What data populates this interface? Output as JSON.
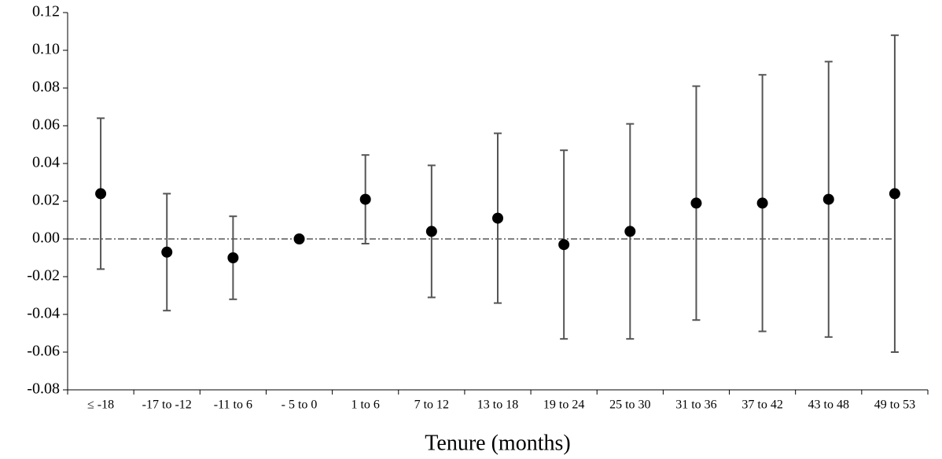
{
  "chart_data": {
    "type": "errorbar",
    "x_label": "Tenure (months)",
    "categories": [
      "≤ -18",
      "-17 to -12",
      "-11 to 6",
      "- 5 to 0",
      "1 to 6",
      "7 to 12",
      "13 to 18",
      "19 to 24",
      "25 to 30",
      "31 to 36",
      "37 to 42",
      "43 to 48",
      "49 to 53"
    ],
    "values": [
      0.024,
      -0.007,
      -0.01,
      0,
      0.021,
      0.004,
      0.011,
      -0.003,
      0.004,
      0.019,
      0.019,
      0.021,
      0.024
    ],
    "errors": [
      0.04,
      0.031,
      0.022,
      0,
      0.0235,
      0.035,
      0.045,
      0.05,
      0.057,
      0.062,
      0.068,
      0.073,
      0.084
    ],
    "color": "#000000",
    "error_color": "#555555",
    "ylim": [
      -0.08,
      0.12
    ],
    "yticks": [
      -0.08,
      -0.06,
      -0.04,
      -0.02,
      {
        "value": 0,
        "label": "0.00"
      },
      0.02,
      0.04,
      0.06,
      0.08,
      {
        "value": 0.1,
        "label": "0.10"
      },
      0.12
    ]
  }
}
